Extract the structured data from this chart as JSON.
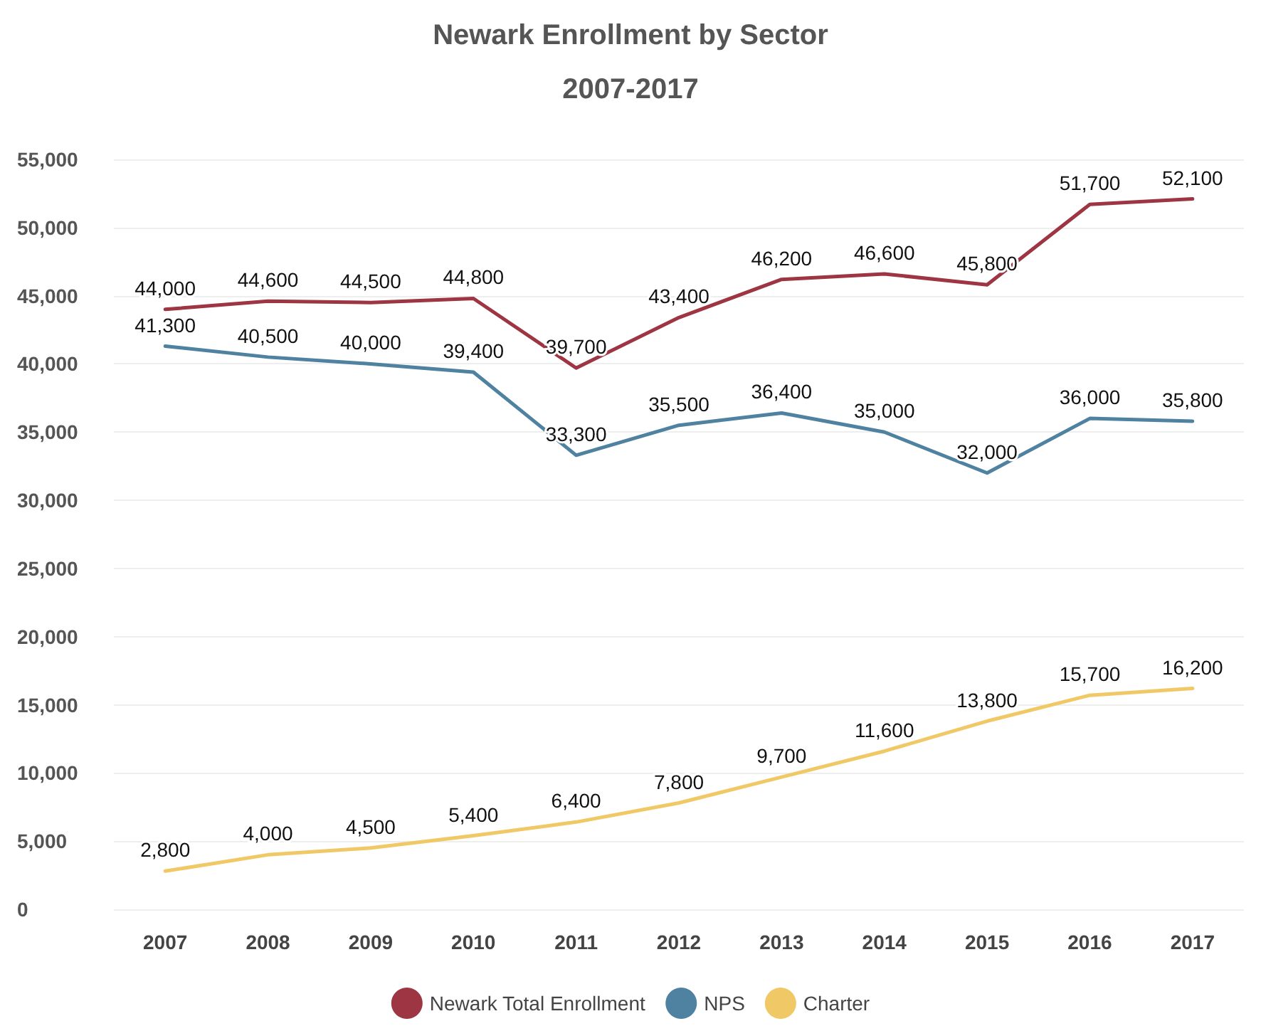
{
  "chart_data": {
    "type": "line",
    "title": "Newark Enrollment by Sector",
    "subtitle": "2007-2017",
    "categories": [
      "2007",
      "2008",
      "2009",
      "2010",
      "2011",
      "2012",
      "2013",
      "2014",
      "2015",
      "2016",
      "2017"
    ],
    "series": [
      {
        "name": "Newark Total Enrollment",
        "color": "#9e3543",
        "values": [
          44000,
          44600,
          44500,
          44800,
          39700,
          43400,
          46200,
          46600,
          45800,
          51700,
          52100
        ],
        "value_labels": [
          "44,000",
          "44,600",
          "44,500",
          "44,800",
          "39,700",
          "43,400",
          "46,200",
          "46,600",
          "45,800",
          "51,700",
          "52,100"
        ]
      },
      {
        "name": "NPS",
        "color": "#4f81a0",
        "values": [
          41300,
          40500,
          40000,
          39400,
          33300,
          35500,
          36400,
          35000,
          32000,
          36000,
          35800
        ],
        "value_labels": [
          "41,300",
          "40,500",
          "40,000",
          "39,400",
          "33,300",
          "35,500",
          "36,400",
          "35,000",
          "32,000",
          "36,000",
          "35,800"
        ]
      },
      {
        "name": "Charter",
        "color": "#f0c865",
        "values": [
          2800,
          4000,
          4500,
          5400,
          6400,
          7800,
          9700,
          11600,
          13800,
          15700,
          16200
        ],
        "value_labels": [
          "2,800",
          "4,000",
          "4,500",
          "5,400",
          "6,400",
          "7,800",
          "9,700",
          "11,600",
          "13,800",
          "15,700",
          "16,200"
        ]
      }
    ],
    "ylim": [
      0,
      55000
    ],
    "yticks": [
      {
        "value": 0,
        "label": "0"
      },
      {
        "value": 5000,
        "label": "5,000"
      },
      {
        "value": 10000,
        "label": "10,000"
      },
      {
        "value": 15000,
        "label": "15,000"
      },
      {
        "value": 20000,
        "label": "20,000"
      },
      {
        "value": 25000,
        "label": "25,000"
      },
      {
        "value": 30000,
        "label": "30,000"
      },
      {
        "value": 35000,
        "label": "35,000"
      },
      {
        "value": 40000,
        "label": "40,000"
      },
      {
        "value": 45000,
        "label": "45,000"
      },
      {
        "value": 50000,
        "label": "50,000"
      },
      {
        "value": 55000,
        "label": "55,000"
      }
    ],
    "grid": "y",
    "legend": "bottom",
    "marker": "none",
    "line_style": "solid"
  }
}
